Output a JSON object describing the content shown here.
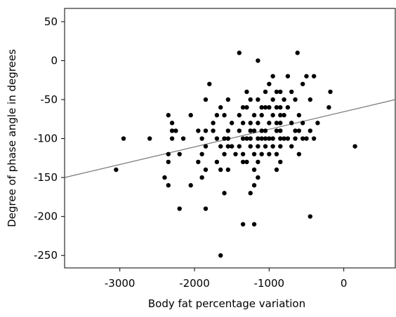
{
  "chart_data": {
    "type": "scatter",
    "x_label": "Body fat percentage variation",
    "y_label": "Degree of phase angle in degrees",
    "color": "#000000",
    "line_color": "#777777",
    "xlim": [
      -3740,
      690
    ],
    "ylim": [
      -266,
      67
    ],
    "xticks": [
      -3000,
      -2000,
      -1000,
      0
    ],
    "yticks": [
      50,
      0,
      -50,
      -100,
      -150,
      -200,
      -250
    ],
    "series": [
      {
        "x": [
          -1400,
          -1150,
          -620,
          -950,
          -750,
          -500,
          -400,
          -1800,
          -1000,
          -550,
          -1300,
          -1050,
          -900,
          -850,
          -700,
          -180,
          -1850,
          -1550,
          -1250,
          -1150,
          -950,
          -800,
          -650,
          -450,
          -1650,
          -1350,
          -1300,
          -1100,
          -1050,
          -1000,
          -900,
          -850,
          -750,
          -200,
          -2350,
          -2050,
          -1700,
          -1600,
          -1400,
          -1200,
          -1100,
          -950,
          -850,
          -800,
          -600,
          -2300,
          -1750,
          -1500,
          -1350,
          -1250,
          -1150,
          -1000,
          -900,
          -850,
          -700,
          -550,
          -350,
          -2300,
          -2250,
          -1950,
          -1850,
          -1750,
          -1550,
          -1400,
          -1250,
          -1200,
          -1100,
          -1050,
          -900,
          -850,
          -650,
          -600,
          -450,
          -2950,
          -2600,
          -2300,
          -2150,
          -1900,
          -1700,
          -1600,
          -1550,
          -1350,
          -1300,
          -1250,
          -1150,
          -1100,
          -1050,
          -1000,
          -950,
          -850,
          -800,
          -750,
          -650,
          -550,
          -500,
          -400,
          -1850,
          -1650,
          -1550,
          -1500,
          -1400,
          -1250,
          -1150,
          -1050,
          -950,
          -850,
          -700,
          150,
          -2350,
          -2200,
          -1900,
          -1600,
          -1450,
          -1350,
          -1200,
          -1100,
          -1000,
          -900,
          -600,
          -2350,
          -1950,
          -1700,
          -1350,
          -1300,
          -1150,
          -850,
          -3050,
          -1850,
          -1650,
          -1550,
          -1200,
          -900,
          -2400,
          -1900,
          -1150,
          -2350,
          -2050,
          -1200,
          -1600,
          -1250,
          -2200,
          -1850,
          -450,
          -1350,
          -1200,
          -1650
        ],
        "y": [
          10,
          0,
          10,
          -20,
          -20,
          -20,
          -20,
          -30,
          -30,
          -30,
          -40,
          -40,
          -40,
          -40,
          -40,
          -40,
          -50,
          -50,
          -50,
          -50,
          -50,
          -50,
          -50,
          -50,
          -60,
          -60,
          -60,
          -60,
          -60,
          -60,
          -60,
          -60,
          -60,
          -60,
          -70,
          -70,
          -70,
          -70,
          -70,
          -70,
          -70,
          -70,
          -70,
          -70,
          -70,
          -80,
          -80,
          -80,
          -80,
          -80,
          -80,
          -80,
          -80,
          -80,
          -80,
          -80,
          -80,
          -90,
          -90,
          -90,
          -90,
          -90,
          -90,
          -90,
          -90,
          -90,
          -90,
          -90,
          -90,
          -90,
          -90,
          -90,
          -90,
          -100,
          -100,
          -100,
          -100,
          -100,
          -100,
          -100,
          -100,
          -100,
          -100,
          -100,
          -100,
          -100,
          -100,
          -100,
          -100,
          -100,
          -100,
          -100,
          -100,
          -100,
          -100,
          -100,
          -110,
          -110,
          -110,
          -110,
          -110,
          -110,
          -110,
          -110,
          -110,
          -110,
          -110,
          -110,
          -120,
          -120,
          -120,
          -120,
          -120,
          -120,
          -120,
          -120,
          -120,
          -120,
          -120,
          -130,
          -130,
          -130,
          -130,
          -130,
          -130,
          -130,
          -140,
          -140,
          -140,
          -140,
          -140,
          -140,
          -150,
          -150,
          -150,
          -160,
          -160,
          -160,
          -170,
          -170,
          -190,
          -190,
          -200,
          -210,
          -210,
          -250
        ]
      }
    ],
    "fit_line": {
      "x": [
        -3740,
        690
      ],
      "y": [
        -150,
        -50
      ]
    }
  }
}
